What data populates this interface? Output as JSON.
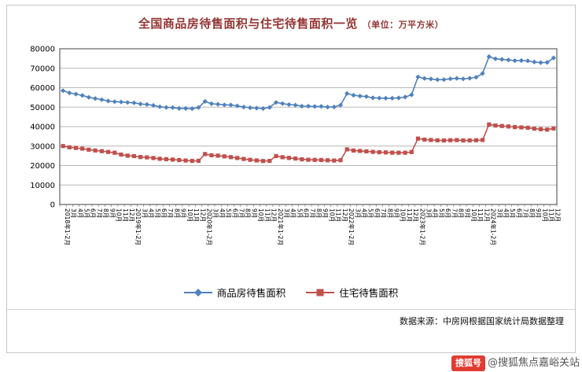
{
  "title": {
    "main": "全国商品房待售面积与住宅待售面积一览",
    "unit": "（单位：万平方米）"
  },
  "source": "数据来源：中房网根据国家统计局数据整理",
  "watermark": {
    "badge": "搜狐号",
    "handle": "@搜狐焦点嘉峪关站"
  },
  "chart_data": {
    "type": "line",
    "title": "全国商品房待售面积与住宅待售面积一览（单位：万平方米）",
    "xlabel": "",
    "ylabel": "",
    "ylim": [
      0,
      80000
    ],
    "yticks": [
      0,
      10000,
      20000,
      30000,
      40000,
      50000,
      60000,
      70000,
      80000
    ],
    "grid": true,
    "legend_position": "bottom",
    "categories": [
      "2018年1-2月",
      "3月",
      "4月",
      "5月",
      "6月",
      "7月",
      "8月",
      "9月",
      "10月",
      "11月",
      "12月",
      "2019年1-2月",
      "3月",
      "4月",
      "5月",
      "6月",
      "7月",
      "8月",
      "9月",
      "10月",
      "11月",
      "12月",
      "2020年1-2月",
      "3月",
      "4月",
      "5月",
      "6月",
      "7月",
      "8月",
      "9月",
      "10月",
      "11月",
      "12月",
      "2021年1-2月",
      "3月",
      "4月",
      "5月",
      "6月",
      "7月",
      "8月",
      "9月",
      "10月",
      "11月",
      "12月",
      "2022年1-2月",
      "3月",
      "4月",
      "5月",
      "6月",
      "7月",
      "8月",
      "9月",
      "10月",
      "11月",
      "12月",
      "2023年1-2月",
      "3月",
      "4月",
      "5月",
      "6月",
      "7月",
      "8月",
      "9月",
      "10月",
      "11月",
      "12月",
      "2024年1-2月",
      "3月",
      "4月",
      "5月",
      "6月",
      "7月",
      "8月",
      "9月",
      "10月",
      "11月",
      "12月"
    ],
    "series": [
      {
        "name": "商品房待售面积",
        "color": "#4F81BD",
        "marker": "diamond",
        "values": [
          58468,
          57329,
          56720,
          56010,
          55083,
          54428,
          53873,
          53191,
          52789,
          52627,
          52414,
          52251,
          51646,
          51380,
          50928,
          50162,
          49876,
          49784,
          49346,
          49323,
          49221,
          49821,
          52978,
          51754,
          51512,
          51184,
          51127,
          50682,
          50052,
          49687,
          49492,
          49287,
          49850,
          52425,
          51835,
          51310,
          51088,
          50518,
          50492,
          50359,
          50385,
          50049,
          50092,
          51023,
          57026,
          56113,
          55735,
          55433,
          54784,
          54655,
          54605,
          54573,
          54734,
          55203,
          56366,
          65528,
          64770,
          64487,
          64120,
          64159,
          64564,
          64795,
          64537,
          64835,
          65385,
          67295,
          75969,
          74833,
          74553,
          74256,
          73894,
          73926,
          73771,
          73177,
          72909,
          72967,
          75327
        ]
      },
      {
        "name": "住宅待售面积",
        "color": "#C0504D",
        "marker": "square",
        "values": [
          30016,
          29385,
          29057,
          28671,
          28164,
          27739,
          27390,
          26980,
          26576,
          25609,
          25091,
          24853,
          24374,
          24192,
          23894,
          23490,
          23288,
          23072,
          22821,
          22570,
          22403,
          22470,
          25900,
          25312,
          25083,
          24715,
          24319,
          23894,
          23400,
          22960,
          22620,
          22342,
          22379,
          24876,
          24300,
          23900,
          23600,
          23200,
          23000,
          22900,
          22850,
          22700,
          22600,
          22761,
          28306,
          27726,
          27520,
          27327,
          27021,
          26867,
          26751,
          26622,
          26574,
          26606,
          26947,
          33852,
          33334,
          33151,
          32976,
          32909,
          33012,
          33094,
          32907,
          32923,
          33021,
          33119,
          41118,
          40562,
          40317,
          40084,
          39771,
          39606,
          39450,
          38964,
          38654,
          38476,
          39088
        ]
      }
    ]
  }
}
